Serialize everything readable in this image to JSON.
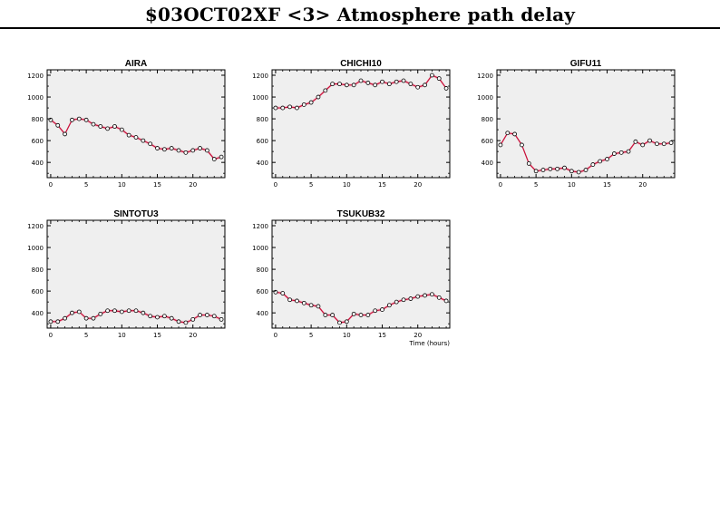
{
  "page": {
    "title": "$03OCT02XF <3>  Atmosphere path delay"
  },
  "colors": {
    "plot_bg": "#efefef",
    "line": "#c8103a",
    "band": "#f2b9c4",
    "marker_fill": "#ffffff",
    "marker_edge": "#000000"
  },
  "chart_data": [
    {
      "type": "line",
      "title": "AIRA",
      "x": [
        0,
        1,
        2,
        3,
        4,
        5,
        6,
        7,
        8,
        9,
        10,
        11,
        12,
        13,
        14,
        15,
        16,
        17,
        18,
        19,
        20,
        21,
        22,
        23,
        24
      ],
      "series": [
        {
          "values": [
            790,
            740,
            660,
            790,
            800,
            790,
            750,
            730,
            710,
            730,
            700,
            650,
            630,
            600,
            570,
            530,
            520,
            530,
            510,
            490,
            510,
            530,
            510,
            430,
            450
          ]
        }
      ],
      "xlim": [
        -0.5,
        24.5
      ],
      "ylim": [
        260,
        1250
      ],
      "xticks": [
        0,
        5,
        10,
        15,
        20
      ],
      "yticks": [
        400,
        600,
        800,
        1000,
        1200
      ],
      "xlabel": "",
      "ylabel": "",
      "grid": false
    },
    {
      "type": "line",
      "title": "CHICHI10",
      "x": [
        0,
        1,
        2,
        3,
        4,
        5,
        6,
        7,
        8,
        9,
        10,
        11,
        12,
        13,
        14,
        15,
        16,
        17,
        18,
        19,
        20,
        21,
        22,
        23,
        24
      ],
      "series": [
        {
          "values": [
            900,
            900,
            910,
            900,
            930,
            950,
            1000,
            1060,
            1120,
            1120,
            1110,
            1110,
            1150,
            1130,
            1110,
            1140,
            1120,
            1140,
            1150,
            1120,
            1090,
            1110,
            1200,
            1170,
            1080
          ]
        }
      ],
      "xlim": [
        -0.5,
        24.5
      ],
      "ylim": [
        260,
        1250
      ],
      "xticks": [
        0,
        5,
        10,
        15,
        20
      ],
      "yticks": [
        400,
        600,
        800,
        1000,
        1200
      ],
      "xlabel": "",
      "ylabel": "",
      "grid": false
    },
    {
      "type": "line",
      "title": "GIFU11",
      "x": [
        0,
        1,
        2,
        3,
        4,
        5,
        6,
        7,
        8,
        9,
        10,
        11,
        12,
        13,
        14,
        15,
        16,
        17,
        18,
        19,
        20,
        21,
        22,
        23,
        24
      ],
      "series": [
        {
          "values": [
            560,
            670,
            660,
            560,
            390,
            320,
            330,
            340,
            340,
            350,
            320,
            310,
            330,
            380,
            410,
            430,
            480,
            490,
            500,
            590,
            560,
            600,
            570,
            570,
            580
          ]
        }
      ],
      "xlim": [
        -0.5,
        24.5
      ],
      "ylim": [
        260,
        1250
      ],
      "xticks": [
        0,
        5,
        10,
        15,
        20
      ],
      "yticks": [
        400,
        600,
        800,
        1000,
        1200
      ],
      "xlabel": "",
      "ylabel": "",
      "grid": false
    },
    {
      "type": "line",
      "title": "SINTOTU3",
      "x": [
        0,
        1,
        2,
        3,
        4,
        5,
        6,
        7,
        8,
        9,
        10,
        11,
        12,
        13,
        14,
        15,
        16,
        17,
        18,
        19,
        20,
        21,
        22,
        23,
        24
      ],
      "series": [
        {
          "values": [
            320,
            320,
            350,
            400,
            410,
            350,
            350,
            390,
            420,
            420,
            410,
            420,
            420,
            400,
            370,
            360,
            370,
            350,
            320,
            310,
            340,
            380,
            380,
            370,
            340
          ]
        }
      ],
      "xlim": [
        -0.5,
        24.5
      ],
      "ylim": [
        260,
        1250
      ],
      "xticks": [
        0,
        5,
        10,
        15,
        20
      ],
      "yticks": [
        400,
        600,
        800,
        1000,
        1200
      ],
      "xlabel": "",
      "ylabel": "",
      "grid": false
    },
    {
      "type": "line",
      "title": "TSUKUB32",
      "x": [
        0,
        1,
        2,
        3,
        4,
        5,
        6,
        7,
        8,
        9,
        10,
        11,
        12,
        13,
        14,
        15,
        16,
        17,
        18,
        19,
        20,
        21,
        22,
        23,
        24
      ],
      "series": [
        {
          "values": [
            590,
            580,
            520,
            510,
            490,
            470,
            460,
            380,
            380,
            310,
            320,
            390,
            380,
            380,
            420,
            430,
            470,
            500,
            520,
            530,
            550,
            560,
            570,
            540,
            510
          ]
        }
      ],
      "xlim": [
        -0.5,
        24.5
      ],
      "ylim": [
        260,
        1250
      ],
      "xticks": [
        0,
        5,
        10,
        15,
        20
      ],
      "yticks": [
        400,
        600,
        800,
        1000,
        1200
      ],
      "xlabel": "Time (hours)",
      "ylabel": "",
      "grid": false
    }
  ]
}
